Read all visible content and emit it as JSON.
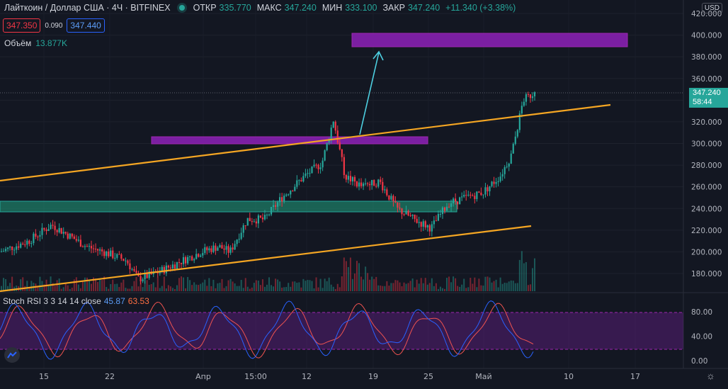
{
  "header": {
    "symbol": "Лайткоин / Доллар США · 4Ч · BITFINEX",
    "open_label": "ОТКР",
    "open": "335.770",
    "high_label": "МАКС",
    "high": "347.240",
    "low_label": "МИН",
    "low": "333.100",
    "close_label": "ЗАКР",
    "close": "347.240",
    "change": "+11.340 (+3.38%)"
  },
  "quote": {
    "bid": "347.350",
    "spread": "0.090",
    "ask": "347.440"
  },
  "volume": {
    "label": "Объём",
    "value": "13.877K"
  },
  "currency": "USD",
  "last_price": {
    "price": "347.240",
    "countdown": "58:44"
  },
  "stoch_rsi": {
    "label": "Stoch RSI 3 3 14 14 close",
    "k": "45.87",
    "d": "63.53"
  },
  "price_axis": [
    "420.000",
    "400.000",
    "380.000",
    "360.000",
    "340.000",
    "320.000",
    "300.000",
    "280.000",
    "260.000",
    "240.000",
    "220.000",
    "200.000",
    "180.000"
  ],
  "rsi_axis": [
    "80.00",
    "40.00",
    "0.00"
  ],
  "time_axis": [
    "15",
    "22",
    "Апр",
    "15:00",
    "12",
    "19",
    "25",
    "Май",
    "10",
    "17"
  ],
  "colors": {
    "up": "#26a69a",
    "down": "#f23645",
    "trend": "#f5a623",
    "zone": "#7b1fa2",
    "rsi_k": "#2962ff",
    "rsi_d": "#ef5350"
  },
  "chart_data": {
    "type": "candlestick",
    "approx_close_path": [
      [
        0,
        200
      ],
      [
        5,
        210
      ],
      [
        9,
        225
      ],
      [
        12,
        215
      ],
      [
        15,
        205
      ],
      [
        18,
        200
      ],
      [
        22,
        192
      ],
      [
        24,
        175
      ],
      [
        27,
        180
      ],
      [
        31,
        190
      ],
      [
        35,
        200
      ],
      [
        38,
        205
      ],
      [
        40,
        200
      ],
      [
        43,
        230
      ],
      [
        46,
        230
      ],
      [
        49,
        250
      ],
      [
        53,
        270
      ],
      [
        56,
        282
      ],
      [
        58,
        322
      ],
      [
        60,
        270
      ],
      [
        63,
        260
      ],
      [
        66,
        265
      ],
      [
        69,
        240
      ],
      [
        72,
        230
      ],
      [
        75,
        222
      ],
      [
        78,
        245
      ],
      [
        81,
        250
      ],
      [
        84,
        255
      ],
      [
        87,
        270
      ],
      [
        89,
        290
      ],
      [
        91,
        340
      ],
      [
        93,
        347.24
      ]
    ],
    "ylim": [
      160,
      425
    ]
  }
}
